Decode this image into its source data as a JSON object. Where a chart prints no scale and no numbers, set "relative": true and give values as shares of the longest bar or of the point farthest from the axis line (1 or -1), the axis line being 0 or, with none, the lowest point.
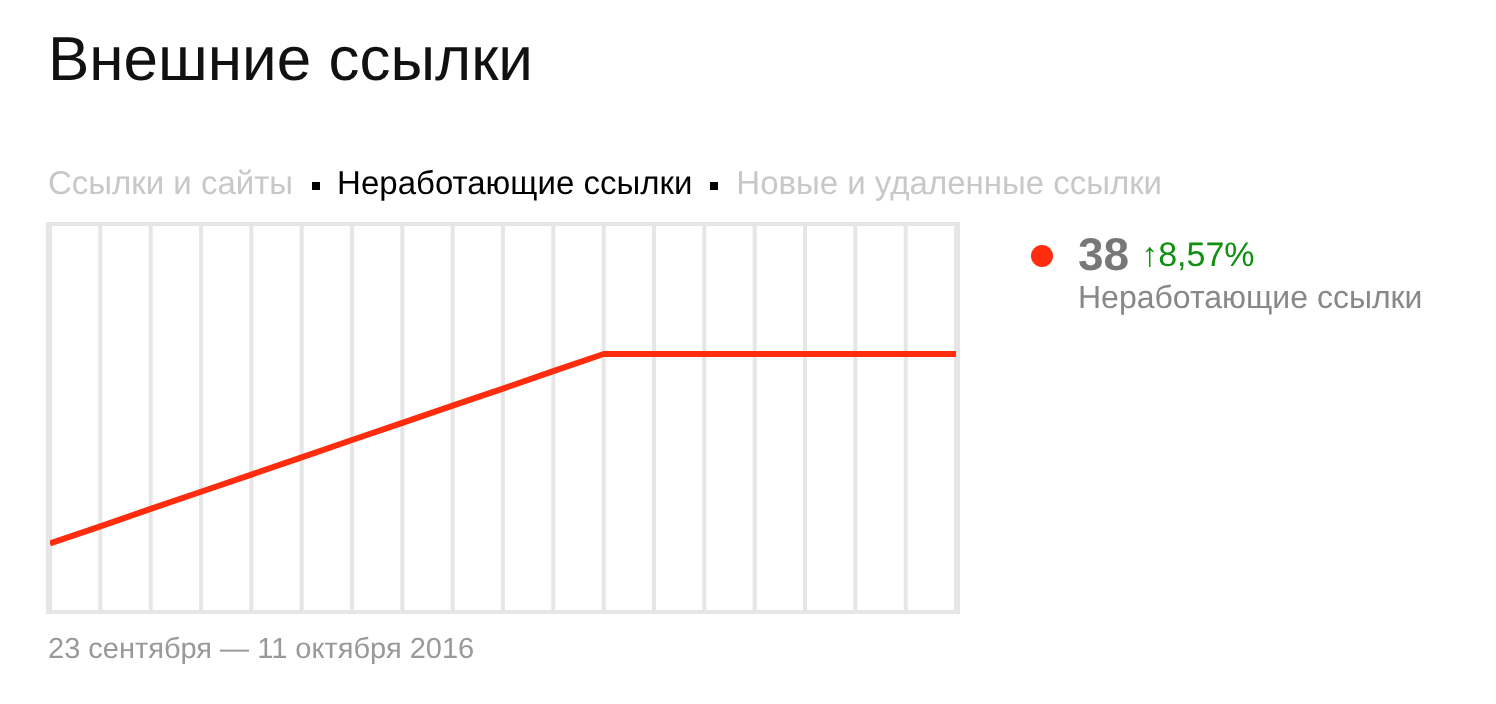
{
  "chart_data": {
    "type": "line",
    "title": "Внешние ссылки",
    "xlabel": "23 сентября — 11 октября 2016",
    "annotations": [
      "Ссылки и сайты",
      "Неработающие ссылки",
      "Новые и удаленные ссылки",
      "38",
      "↑8,57%"
    ],
    "relative": true,
    "categories": [
      null,
      null,
      null,
      null,
      null,
      null,
      null,
      null,
      null,
      null,
      null,
      null,
      null,
      null,
      null,
      null,
      null,
      null,
      null
    ],
    "series": [
      {
        "name": "Неработающие ссылки",
        "color": "#ff2d0d",
        "values": [
          0.26,
          0.327,
          0.395,
          0.462,
          0.529,
          0.596,
          0.664,
          0.731,
          0.798,
          0.865,
          0.933,
          1,
          1,
          1,
          1,
          1,
          1,
          1,
          1
        ]
      }
    ],
    "grid": "x",
    "legend": "right",
    "marker": "none",
    "line_style": "solid"
  }
}
